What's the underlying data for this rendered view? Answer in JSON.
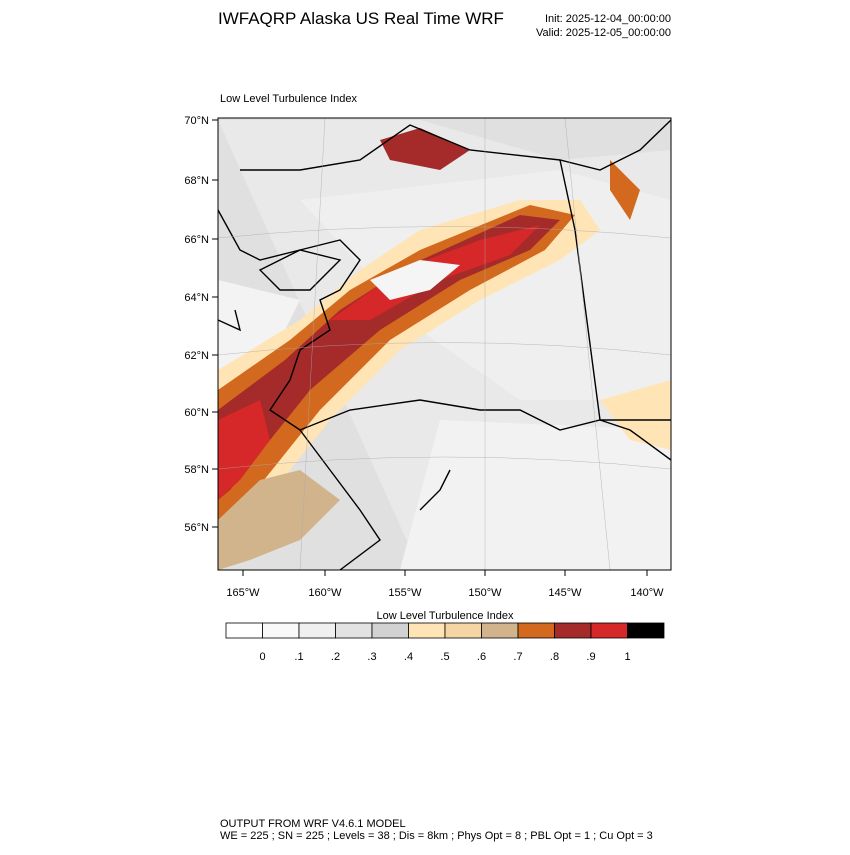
{
  "title": "IWFAQRP Alaska US Real Time WRF",
  "init": "Init: 2025-12-04_00:00:00",
  "valid": "Valid: 2025-12-05_00:00:00",
  "map": {
    "subtitle": "Low Level Turbulence Index",
    "lat_labels": [
      "70°N",
      "68°N",
      "66°N",
      "64°N",
      "62°N",
      "60°N",
      "58°N",
      "56°N"
    ],
    "lon_labels": [
      "165°W",
      "160°W",
      "155°W",
      "150°W",
      "145°W",
      "140°W"
    ]
  },
  "colorbar": {
    "title": "Low Level Turbulence Index",
    "colors": [
      "#ffffff",
      "#f9f9f9",
      "#f0f0f0",
      "#e2e2e2",
      "#d2d2d2",
      "#ffe4b5",
      "#f5d5a3",
      "#d2b48c",
      "#d2691e",
      "#a52a2a",
      "#d62828",
      "#000000"
    ],
    "labels": [
      "0",
      ".1",
      ".2",
      ".3",
      ".4",
      ".5",
      ".6",
      ".7",
      ".8",
      ".9",
      "1"
    ]
  },
  "footer": [
    "OUTPUT FROM WRF V4.6.1 MODEL",
    "WE = 225 ; SN = 225 ; Levels = 38 ; Dis = 8km ; Phys Opt = 8 ; PBL Opt = 1 ; Cu Opt = 3"
  ]
}
